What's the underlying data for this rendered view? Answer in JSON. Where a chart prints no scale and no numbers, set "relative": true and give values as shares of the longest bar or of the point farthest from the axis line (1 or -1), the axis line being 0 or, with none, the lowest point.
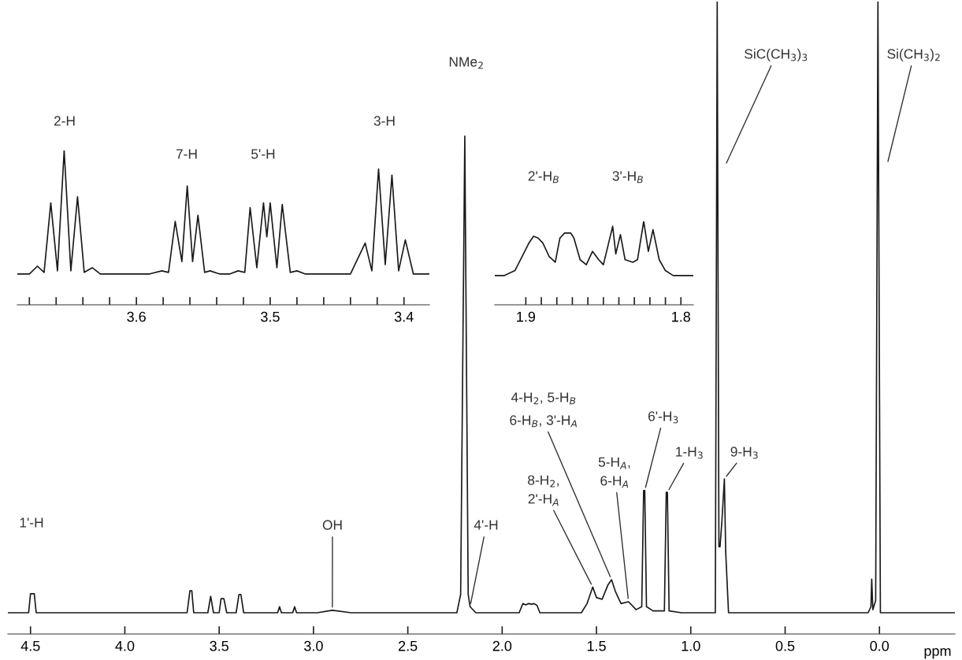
{
  "chart_data": [
    {
      "type": "line",
      "relative": true,
      "xlabel": "ppm",
      "xlim": [
        4.62,
        -0.4
      ],
      "xticks": [
        4.5,
        {
          "value": 4,
          "label": "4.0"
        },
        3.5,
        {
          "value": 3,
          "label": "3.0"
        },
        2.5,
        {
          "value": 2,
          "label": "2.0"
        },
        1.5,
        {
          "value": 1,
          "label": "1.0"
        },
        0.5,
        {
          "value": 0,
          "label": "0.0"
        }
      ],
      "grid": false,
      "marker": "none",
      "line_style": "solid",
      "series": [
        {
          "color": "#1a1a1a",
          "x": [
            4.62,
            4.51,
            4.5,
            4.49,
            4.48,
            4.47,
            3.67,
            3.655,
            3.645,
            3.635,
            3.56,
            3.545,
            3.53,
            3.5,
            3.49,
            3.475,
            3.46,
            3.41,
            3.395,
            3.385,
            3.37,
            3.19,
            3.18,
            3.17,
            3.11,
            3.1,
            3.09,
            2.98,
            2.9,
            2.8,
            2.24,
            2.22,
            2.198,
            2.18,
            2.17,
            2.14,
            1.91,
            1.89,
            1.875,
            1.86,
            1.845,
            1.83,
            1.815,
            1.8,
            1.58,
            1.55,
            1.52,
            1.5,
            1.47,
            1.44,
            1.42,
            1.4,
            1.37,
            1.33,
            1.29,
            1.26,
            1.25,
            1.244,
            1.235,
            1.2,
            1.14,
            1.13,
            1.124,
            1.115,
            1.05,
            0.87,
            0.86,
            0.851,
            0.845,
            0.835,
            0.822,
            0.815,
            0.8,
            0.06,
            0.045,
            0.041,
            0.035,
            0.02,
            0.008,
            -0.005,
            -0.4
          ],
          "values": [
            0,
            0,
            0.031,
            0.031,
            0.031,
            0,
            0,
            0.036,
            0.036,
            0,
            0,
            0.027,
            0,
            0,
            0.023,
            0.023,
            0,
            0,
            0.03,
            0.03,
            0,
            0,
            0.01,
            0,
            0,
            0.01,
            0,
            0,
            0.004,
            0,
            0,
            0.03,
            0.78,
            0.03,
            0.01,
            0,
            0,
            0.015,
            0.013,
            0.015,
            0.014,
            0.015,
            0.012,
            0,
            0,
            0.015,
            0.042,
            0.025,
            0.022,
            0.045,
            0.054,
            0.035,
            0.015,
            0.018,
            0.005,
            0.01,
            0.2,
            0.2,
            0.01,
            0.003,
            0.003,
            0.197,
            0.197,
            0.003,
            0,
            0,
            1,
            0.108,
            0.108,
            0.15,
            0.219,
            0.1,
            0,
            0,
            0.01,
            0.055,
            0.005,
            0.02,
            1,
            0,
            0
          ]
        }
      ],
      "annotations": [
        "1'-H",
        {
          "text": "OH",
          "x": 2.9,
          "y": 0.004
        },
        {
          "text": "4'-H",
          "x": 2.17,
          "y": 0.01
        },
        "NMe$_{2}$",
        {
          "text": "8-H$_{2}$,\n2'-H$_{A}$",
          "x": 1.52,
          "y": 0.042
        },
        "4-H$_{2}$, 5-H$_{B}$",
        {
          "text": "6-H$_{B}$, 3'-H$_{A}$",
          "x": 1.42,
          "y": 0.054
        },
        {
          "text": "5-H$_{A}$,\n6-H$_{A}$",
          "x": 1.33,
          "y": 0.018
        },
        {
          "text": "6'-H$_{3}$",
          "x": 1.244,
          "y": 0.2
        },
        {
          "text": "1-H$_{3}$",
          "x": 1.124,
          "y": 0.197
        },
        {
          "text": "9-H$_{3}$",
          "x": 0.822,
          "y": 0.219
        },
        "SiC(CH$_{3}$)$_{3}$",
        "Si(CH$_{3}$)$_{2}$"
      ]
    },
    {
      "type": "line",
      "relative": true,
      "xlim": [
        3.689,
        3.381
      ],
      "xticks": [
        {
          "value": 3.68,
          "label": null
        },
        {
          "value": 3.66,
          "label": null
        },
        {
          "value": 3.64,
          "label": null
        },
        {
          "value": 3.62,
          "label": null
        },
        3.6,
        {
          "value": 3.58,
          "label": null
        },
        {
          "value": 3.56,
          "label": null
        },
        {
          "value": 3.54,
          "label": null
        },
        {
          "value": 3.52,
          "label": null
        },
        3.5,
        {
          "value": 3.48,
          "label": null
        },
        {
          "value": 3.46,
          "label": null
        },
        {
          "value": 3.44,
          "label": null
        },
        {
          "value": 3.42,
          "label": null
        },
        3.4
      ],
      "grid": false,
      "marker": "none",
      "line_style": "solid",
      "series": [
        {
          "color": "#1a1a1a",
          "x": [
            3.689,
            3.68,
            3.674,
            3.669,
            3.664,
            3.659,
            3.654,
            3.649,
            3.644,
            3.639,
            3.633,
            3.627,
            3.59,
            3.581,
            3.576,
            3.571,
            3.566,
            3.562,
            3.558,
            3.554,
            3.549,
            3.545,
            3.538,
            3.53,
            3.524,
            3.519,
            3.515,
            3.51,
            3.505,
            3.5025,
            3.5,
            3.495,
            3.491,
            3.485,
            3.48,
            3.474,
            3.44,
            3.429,
            3.424,
            3.419,
            3.414,
            3.409,
            3.404,
            3.399,
            3.393,
            3.381
          ],
          "values": [
            0.2,
            0.2,
            0.25,
            0.21,
            0.66,
            0.22,
            1,
            0.22,
            0.7,
            0.21,
            0.24,
            0.2,
            0.2,
            0.22,
            0.21,
            0.54,
            0.28,
            0.77,
            0.28,
            0.58,
            0.21,
            0.22,
            0.2,
            0.2,
            0.22,
            0.21,
            0.63,
            0.24,
            0.66,
            0.44,
            0.66,
            0.24,
            0.65,
            0.21,
            0.22,
            0.2,
            0.2,
            0.4,
            0.22,
            0.88,
            0.26,
            0.84,
            0.22,
            0.42,
            0.2,
            0.2
          ]
        }
      ],
      "annotations": [
        "2-H",
        "7-H",
        "5'-H",
        "3-H"
      ]
    },
    {
      "type": "line",
      "relative": true,
      "xlim": [
        1.92,
        1.792
      ],
      "xticks": [
        1.9,
        {
          "value": 1.89,
          "label": null
        },
        {
          "value": 1.88,
          "label": null
        },
        {
          "value": 1.87,
          "label": null
        },
        {
          "value": 1.86,
          "label": null
        },
        {
          "value": 1.85,
          "label": null
        },
        {
          "value": 1.84,
          "label": null
        },
        {
          "value": 1.83,
          "label": null
        },
        {
          "value": 1.82,
          "label": null
        },
        {
          "value": 1.81,
          "label": null
        },
        1.8
      ],
      "grid": false,
      "marker": "none",
      "line_style": "solid",
      "series": [
        {
          "color": "#1a1a1a",
          "x": [
            1.92,
            1.914,
            1.907,
            1.898,
            1.895,
            1.892,
            1.889,
            1.885,
            1.881,
            1.878,
            1.875,
            1.871,
            1.869,
            1.865,
            1.861,
            1.857,
            1.853,
            1.85,
            1.844,
            1.842,
            1.839,
            1.836,
            1.831,
            1.828,
            1.824,
            1.821,
            1.818,
            1.814,
            1.81,
            1.805,
            1.792
          ],
          "values": [
            0.35,
            0.35,
            0.41,
            0.74,
            0.82,
            0.8,
            0.74,
            0.58,
            0.51,
            0.8,
            0.86,
            0.86,
            0.8,
            0.54,
            0.48,
            0.64,
            0.54,
            0.48,
            0.94,
            0.61,
            0.84,
            0.54,
            0.51,
            0.54,
            1,
            0.64,
            0.9,
            0.54,
            0.41,
            0.35,
            0.35
          ]
        }
      ],
      "annotations": [
        "2'-H$_{B}$",
        "3'-H$_{B}$"
      ]
    }
  ]
}
